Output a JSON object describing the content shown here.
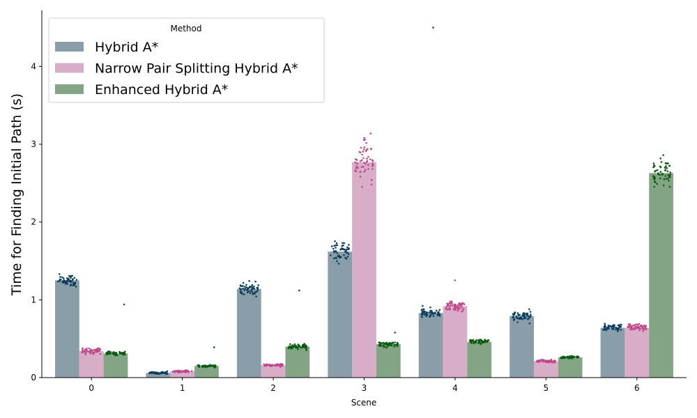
{
  "chart_data": {
    "type": "bar",
    "title": "",
    "xlabel": "Scene",
    "ylabel": "Time for Finding Initial Path (s)",
    "categories": [
      "0",
      "1",
      "2",
      "3",
      "4",
      "5",
      "6"
    ],
    "y_ticks": [
      "0",
      "1",
      "2",
      "3",
      "4"
    ],
    "ylim": [
      0,
      4.72
    ],
    "legend": {
      "title": "Method",
      "placement": "top-left"
    },
    "series": [
      {
        "name": "Hybrid A*",
        "bar_color": "#8a9ea9",
        "point_color": "#0b3d5c",
        "values": [
          1.25,
          0.06,
          1.14,
          1.62,
          0.83,
          0.79,
          0.64
        ],
        "spread": [
          0.05,
          0.01,
          0.05,
          0.09,
          0.03,
          0.04,
          0.03
        ],
        "outliers": [
          [],
          [],
          [],
          [],
          [
            4.5
          ],
          [],
          []
        ]
      },
      {
        "name": "Narrow Pair Splitting Hybrid A*",
        "bar_color": "#d7adc8",
        "point_color": "#c0468a",
        "values": [
          0.34,
          0.08,
          0.16,
          2.77,
          0.92,
          0.21,
          0.64
        ],
        "spread": [
          0.02,
          0.01,
          0.01,
          0.15,
          0.04,
          0.01,
          0.03
        ],
        "outliers": [
          [],
          [],
          [],
          [
            3.08
          ],
          [
            1.25
          ],
          [],
          []
        ]
      },
      {
        "name": "Enhanced Hybrid A*",
        "bar_color": "#84a585",
        "point_color": "#0a5a12",
        "values": [
          0.31,
          0.15,
          0.4,
          0.43,
          0.46,
          0.26,
          2.63
        ],
        "spread": [
          0.015,
          0.01,
          0.02,
          0.02,
          0.02,
          0.01,
          0.11
        ],
        "outliers": [
          [
            0.94
          ],
          [
            0.39
          ],
          [
            1.12
          ],
          [
            0.58
          ],
          [],
          [],
          [
            2.86
          ]
        ]
      }
    ]
  }
}
